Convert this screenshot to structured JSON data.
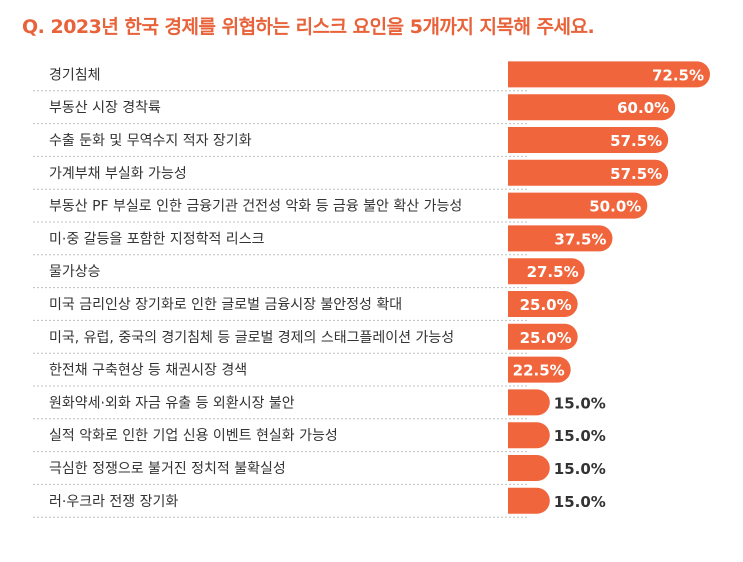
{
  "title": "Q. 2023년 한국 경제를 위협하는 리스크 요인을 5개까지 지목해 주세요.",
  "colors": {
    "accent": "#e8623a",
    "bar": "#f0653c",
    "grid": "#bfbfbf"
  },
  "chart_data": {
    "type": "bar",
    "orientation": "horizontal",
    "title": "Q. 2023년 한국 경제를 위협하는 리스크 요인을 5개까지 지목해 주세요.",
    "xlim": [
      0,
      72.5
    ],
    "categories": [
      "경기침체",
      "부동산 시장 경착륙",
      "수출 둔화 및 무역수지 적자 장기화",
      "가계부채 부실화 가능성",
      "부동산 PF 부실로 인한 금융기관 건전성 악화 등 금융 불안 확산 가능성",
      "미·중 갈등을 포함한 지정학적 리스크",
      "물가상승",
      "미국 금리인상 장기화로 인한 글로벌 금융시장 불안정성 확대",
      "미국, 유럽, 중국의 경기침체 등 글로벌 경제의 스태그플레이션 가능성",
      "한전채 구축현상 등 채권시장 경색",
      "원화약세·외화 자금 유출 등 외환시장 불안",
      "실적 악화로 인한 기업 신용 이벤트 현실화 가능성",
      "극심한 정쟁으로 불거진 정치적 불확실성",
      "러·우크라 전쟁 장기화"
    ],
    "values": [
      72.5,
      60.0,
      57.5,
      57.5,
      50.0,
      37.5,
      27.5,
      25.0,
      25.0,
      22.5,
      15.0,
      15.0,
      15.0,
      15.0
    ],
    "labels": [
      "72.5%",
      "60.0%",
      "57.5%",
      "57.5%",
      "50.0%",
      "37.5%",
      "27.5%",
      "25.0%",
      "25.0%",
      "22.5%",
      "15.0%",
      "15.0%",
      "15.0%",
      "15.0%"
    ]
  }
}
